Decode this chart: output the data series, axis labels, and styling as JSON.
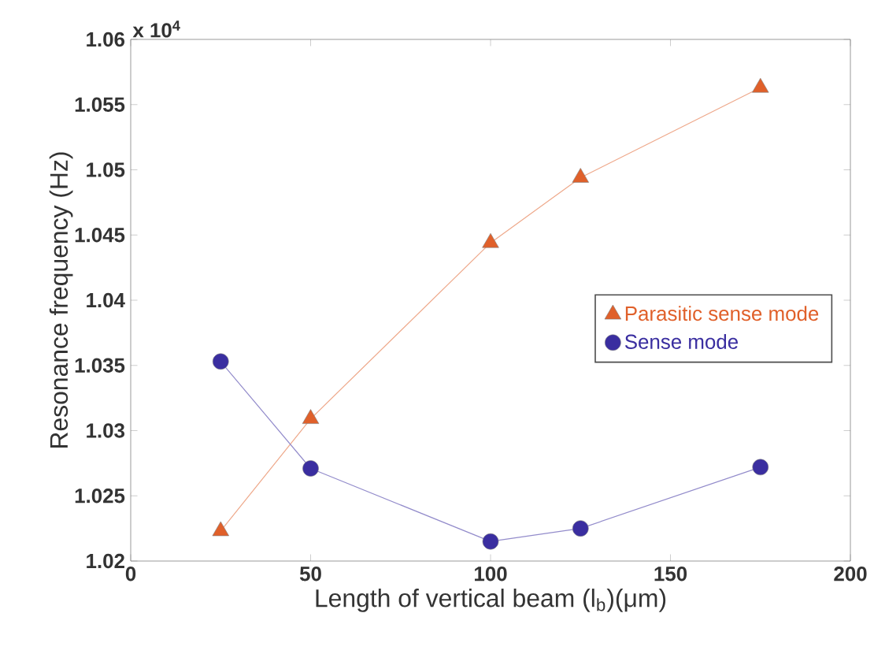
{
  "chart_data": {
    "type": "line",
    "xlabel": "Length of vertical beam (l$_{b}$)(μm)",
    "ylabel": "Resonance frequency (Hz)",
    "annotations": [
      "x 10$^{4}$"
    ],
    "xlim": [
      0,
      200
    ],
    "xticks": [
      0,
      50,
      100,
      150,
      200
    ],
    "ylim": [
      1.02,
      1.06
    ],
    "yticks": [
      1.02,
      1.025,
      1.03,
      1.035,
      1.04,
      1.045,
      1.05,
      1.055,
      1.06
    ],
    "x": [
      25,
      50,
      100,
      125,
      175
    ],
    "series": [
      {
        "name": "Parasitic sense mode",
        "color": "#e0602a",
        "marker": "triangle",
        "values": [
          1.0223,
          1.0309,
          1.0444,
          1.0494,
          1.0563
        ]
      },
      {
        "name": "Sense mode",
        "color": "#3a2ea0",
        "marker": "circle",
        "values": [
          1.0353,
          1.0271,
          1.0215,
          1.0225,
          1.0272
        ]
      }
    ],
    "legend": "right",
    "grid": false
  }
}
